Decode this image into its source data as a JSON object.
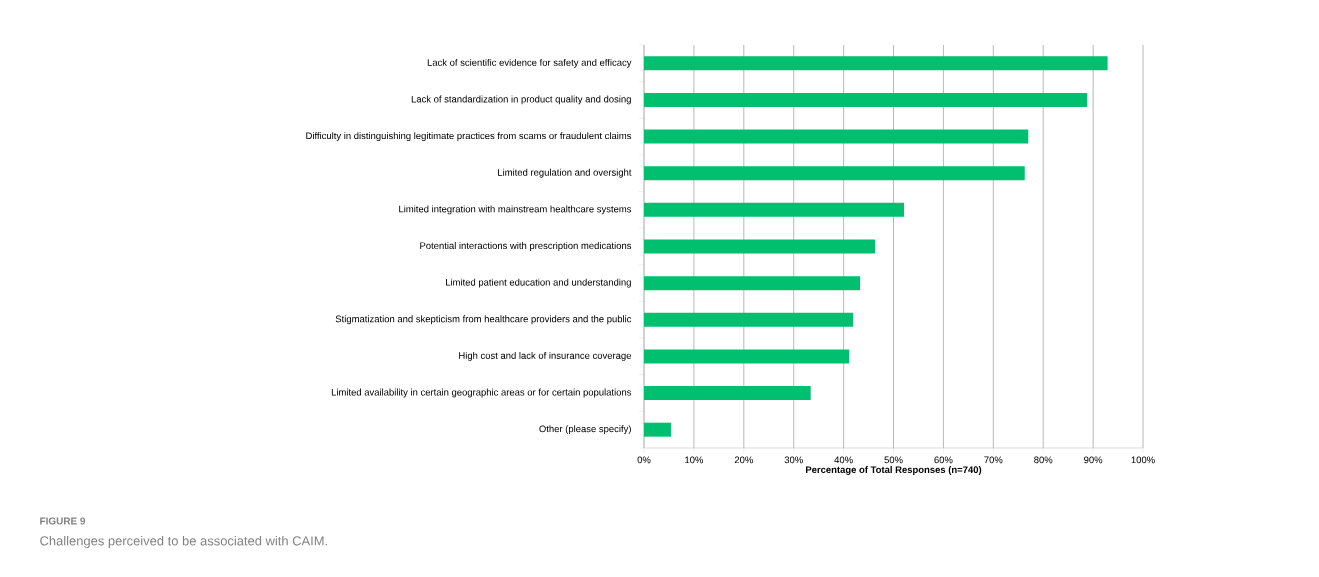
{
  "chart_data": {
    "type": "bar",
    "orientation": "horizontal",
    "xlabel": "Percentage of Total Responses (n=740)",
    "categories": [
      "Lack of scientific evidence for safety and efficacy",
      "Lack of standardization in product quality and dosing",
      "Difficulty in distinguishing legitimate practices from scams or fraudulent claims",
      "Limited regulation and oversight",
      "Limited integration with mainstream healthcare systems",
      "Potential interactions with prescription medications",
      "Limited patient education and understanding",
      "Stigmatization and skepticism from healthcare providers and the public",
      "High cost and lack of insurance coverage",
      "Limited availability in certain geographic areas or for certain populations",
      "Other (please specify)"
    ],
    "values": [
      92.9,
      88.8,
      77.0,
      76.3,
      52.1,
      46.3,
      43.3,
      41.9,
      41.1,
      33.4,
      5.4
    ],
    "color": "#00bf6f",
    "xlim": [
      0,
      100
    ],
    "xticks": [
      {
        "value": 0,
        "label": "0%"
      },
      {
        "value": 10,
        "label": "10%"
      },
      {
        "value": 20,
        "label": "20%"
      },
      {
        "value": 30,
        "label": "30%"
      },
      {
        "value": 40,
        "label": "40%"
      },
      {
        "value": 50,
        "label": "50%"
      },
      {
        "value": 60,
        "label": "60%"
      },
      {
        "value": 70,
        "label": "70%"
      },
      {
        "value": 80,
        "label": "80%"
      },
      {
        "value": 90,
        "label": "90%"
      },
      {
        "value": 100,
        "label": "100%"
      }
    ],
    "grid": "x",
    "annotations": [
      "FIGURE 9",
      "Challenges perceived to be associated with CAIM."
    ]
  }
}
